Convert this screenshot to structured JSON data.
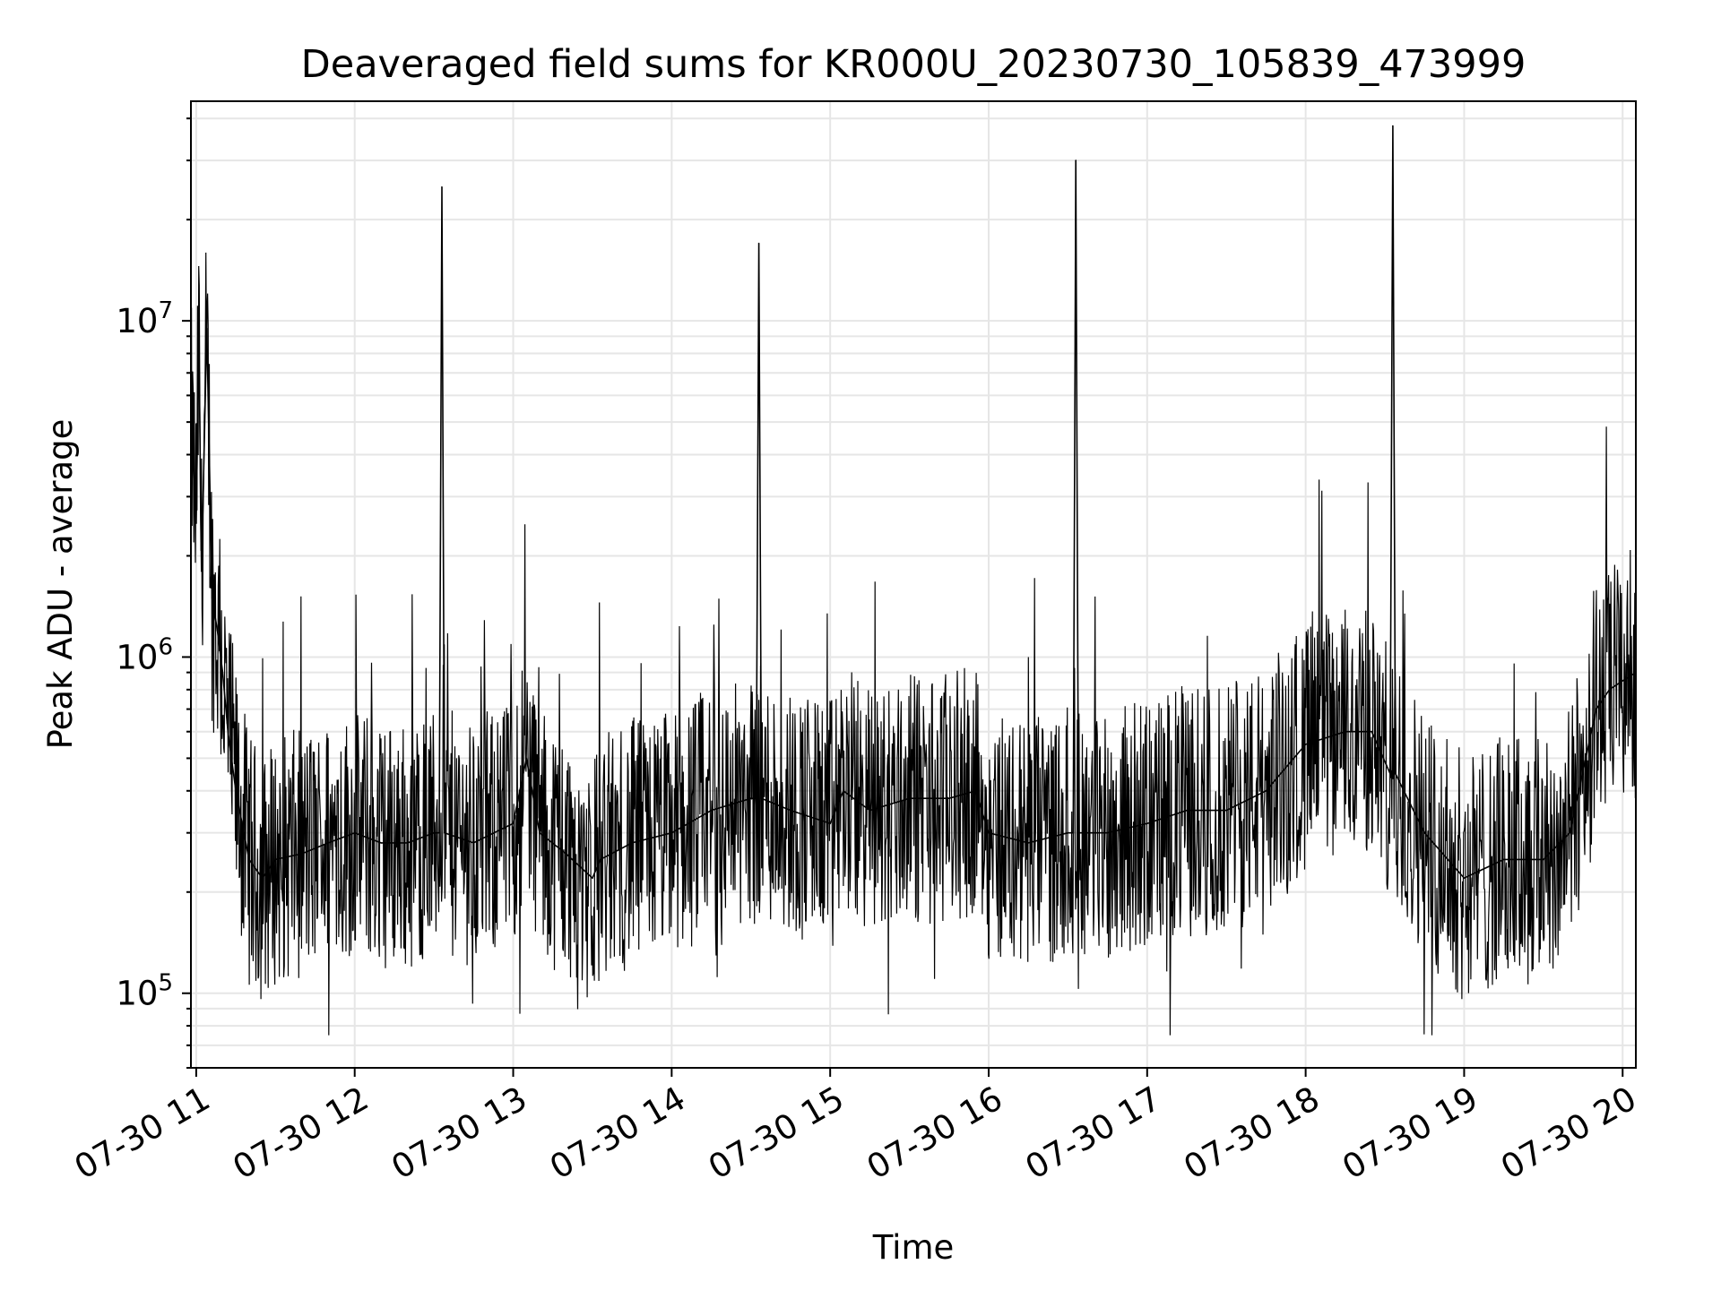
{
  "chart_data": {
    "type": "line",
    "title": "Deaveraged field sums for KR000U_20230730_105839_473999",
    "xlabel": "Time",
    "ylabel": "Peak ADU - average",
    "y_scale": "log",
    "ylim": [
      60000,
      45000000
    ],
    "xlim": [
      "2023-07-30 10:58",
      "2023-07-30 20:05"
    ],
    "grid": true,
    "line_color": "#000000",
    "grid_color": "#e6e6e6",
    "x_ticks": [
      "07-30 11",
      "07-30 12",
      "07-30 13",
      "07-30 14",
      "07-30 15",
      "07-30 16",
      "07-30 17",
      "07-30 18",
      "07-30 19",
      "07-30 20"
    ],
    "y_ticks": [
      {
        "base": "10",
        "exp": "5",
        "value": 100000
      },
      {
        "base": "10",
        "exp": "6",
        "value": 1000000
      },
      {
        "base": "10",
        "exp": "7",
        "value": 10000000
      }
    ],
    "series": [
      {
        "x": [
          "2023-07-30 10:58",
          "2023-07-30 11:00",
          "2023-07-30 11:01",
          "2023-07-30 11:02",
          "2023-07-30 11:04",
          "2023-07-30 11:06",
          "2023-07-30 11:08",
          "2023-07-30 11:10",
          "2023-07-30 11:12",
          "2023-07-30 11:15",
          "2023-07-30 11:20",
          "2023-07-30 11:25",
          "2023-07-30 11:30",
          "2023-07-30 11:40",
          "2023-07-30 11:50",
          "2023-07-30 12:00",
          "2023-07-30 12:10",
          "2023-07-30 12:20",
          "2023-07-30 12:30",
          "2023-07-30 12:32",
          "2023-07-30 12:33",
          "2023-07-30 12:34",
          "2023-07-30 12:45",
          "2023-07-30 13:00",
          "2023-07-30 13:05",
          "2023-07-30 13:10",
          "2023-07-30 13:20",
          "2023-07-30 13:30",
          "2023-07-30 13:33",
          "2023-07-30 13:45",
          "2023-07-30 14:00",
          "2023-07-30 14:15",
          "2023-07-30 14:30",
          "2023-07-30 14:32",
          "2023-07-30 14:33",
          "2023-07-30 14:34",
          "2023-07-30 14:45",
          "2023-07-30 15:00",
          "2023-07-30 15:05",
          "2023-07-30 15:15",
          "2023-07-30 15:30",
          "2023-07-30 15:45",
          "2023-07-30 15:55",
          "2023-07-30 16:00",
          "2023-07-30 16:15",
          "2023-07-30 16:30",
          "2023-07-30 16:32",
          "2023-07-30 16:33",
          "2023-07-30 16:34",
          "2023-07-30 16:45",
          "2023-07-30 17:00",
          "2023-07-30 17:15",
          "2023-07-30 17:30",
          "2023-07-30 17:45",
          "2023-07-30 18:00",
          "2023-07-30 18:15",
          "2023-07-30 18:25",
          "2023-07-30 18:32",
          "2023-07-30 18:33",
          "2023-07-30 18:34",
          "2023-07-30 18:45",
          "2023-07-30 19:00",
          "2023-07-30 19:15",
          "2023-07-30 19:30",
          "2023-07-30 19:40",
          "2023-07-30 19:50",
          "2023-07-30 19:55",
          "2023-07-30 20:00",
          "2023-07-30 20:05"
        ],
        "y": [
          5000000,
          2500000,
          9000000,
          1800000,
          9500000,
          1500000,
          1200000,
          900000,
          600000,
          400000,
          250000,
          220000,
          250000,
          260000,
          280000,
          300000,
          280000,
          280000,
          300000,
          300000,
          25000000,
          300000,
          280000,
          320000,
          500000,
          300000,
          260000,
          220000,
          250000,
          280000,
          300000,
          350000,
          380000,
          380000,
          17000000,
          380000,
          350000,
          320000,
          400000,
          350000,
          380000,
          380000,
          400000,
          300000,
          280000,
          300000,
          300000,
          30000000,
          300000,
          300000,
          320000,
          350000,
          350000,
          400000,
          550000,
          600000,
          600000,
          450000,
          38000000,
          450000,
          300000,
          220000,
          250000,
          250000,
          300000,
          700000,
          800000,
          850000,
          900000
        ]
      }
    ]
  }
}
